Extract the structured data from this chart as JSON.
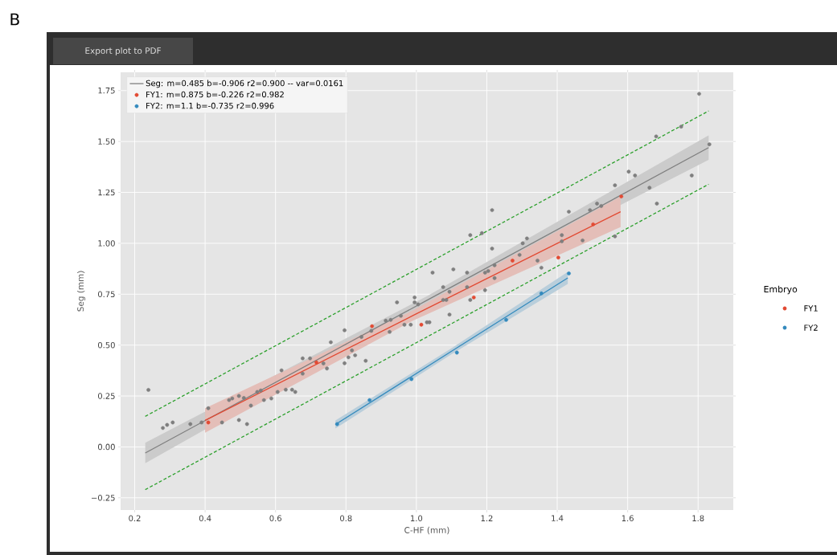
{
  "chart_data": {
    "type": "scatter",
    "xlabel": "C-HF (mm)",
    "ylabel": "Seg (mm)",
    "legend_title": "Embryo",
    "xlim": [
      0.16,
      1.9
    ],
    "ylim": [
      -0.31,
      1.84
    ],
    "xticks": [
      0.2,
      0.4,
      0.6,
      0.8,
      {
        "value": 1.0,
        "label": "1.0"
      },
      1.2,
      1.4,
      1.6,
      1.8
    ],
    "yticks": [
      {
        "value": -0.25,
        "label": "−0.25"
      },
      {
        "value": 0,
        "label": "0.00"
      },
      {
        "value": 0.25,
        "label": "0.25"
      },
      {
        "value": 0.5,
        "label": "0.50"
      },
      {
        "value": 0.75,
        "label": "0.75"
      },
      {
        "value": 1.0,
        "label": "1.00"
      },
      {
        "value": 1.25,
        "label": "1.25"
      },
      {
        "value": 1.5,
        "label": "1.50"
      },
      {
        "value": 1.75,
        "label": "1.75"
      }
    ],
    "grid": true,
    "legend": "top left",
    "marker": "circle",
    "annotations": [
      "B",
      "Export plot to PDF",
      "FY1",
      "FY2"
    ],
    "series": [
      {
        "color": "#7f7f7f",
        "x": [
          0.239,
          0.28,
          0.292,
          0.308,
          0.358,
          0.39,
          0.409,
          0.448,
          0.468,
          0.477,
          0.496,
          0.496,
          0.51,
          0.519,
          0.53,
          0.548,
          0.558,
          0.567,
          0.588,
          0.606,
          0.617,
          0.629,
          0.647,
          0.656,
          0.677,
          0.677,
          0.698,
          0.736,
          0.746,
          0.757,
          0.796,
          0.796,
          0.807,
          0.817,
          0.826,
          0.844,
          0.856,
          0.872,
          0.913,
          0.924,
          0.927,
          0.945,
          0.956,
          0.966,
          0.984,
          0.995,
          0.995,
          1.005,
          1.03,
          1.037,
          1.046,
          1.076,
          1.076,
          1.085,
          1.094,
          1.094,
          1.105,
          1.144,
          1.144,
          1.153,
          1.153,
          1.186,
          1.195,
          1.204,
          1.195,
          1.215,
          1.215,
          1.222,
          1.222,
          1.293,
          1.302,
          1.314,
          1.344,
          1.355,
          1.413,
          1.413,
          1.433,
          1.472,
          1.493,
          1.513,
          1.525,
          1.564,
          1.564,
          1.603,
          1.621,
          1.662,
          1.681,
          1.683,
          1.752,
          1.782,
          1.803,
          1.832
        ],
        "values": [
          0.28,
          0.093,
          0.108,
          0.12,
          0.112,
          0.12,
          0.19,
          0.12,
          0.23,
          0.238,
          0.25,
          0.132,
          0.24,
          0.112,
          0.203,
          0.27,
          0.277,
          0.23,
          0.238,
          0.27,
          0.376,
          0.281,
          0.281,
          0.27,
          0.435,
          0.36,
          0.435,
          0.41,
          0.385,
          0.514,
          0.573,
          0.411,
          0.44,
          0.474,
          0.45,
          0.54,
          0.423,
          0.57,
          0.62,
          0.565,
          0.624,
          0.71,
          0.644,
          0.6,
          0.6,
          0.734,
          0.71,
          0.7,
          0.612,
          0.612,
          0.856,
          0.785,
          0.722,
          0.722,
          0.762,
          0.65,
          0.872,
          0.856,
          0.785,
          0.722,
          1.04,
          1.05,
          0.856,
          0.864,
          0.77,
          1.163,
          0.974,
          0.892,
          0.829,
          0.943,
          1.0,
          1.024,
          0.915,
          0.88,
          1.04,
          1.01,
          1.155,
          1.014,
          1.163,
          1.195,
          1.183,
          1.285,
          1.034,
          1.352,
          1.333,
          1.273,
          1.525,
          1.195,
          1.573,
          1.333,
          1.734,
          1.486
        ]
      },
      {
        "type": "line",
        "name": "Seg: m=0.485 b=-0.906  r2=0.900 -- var=0.0161",
        "color": "#7f7f7f",
        "marker": "none",
        "x": [
          0.23,
          1.03,
          1.83
        ],
        "values": [
          -0.03,
          0.72,
          1.47
        ],
        "lower": [
          -0.08,
          0.7,
          1.41
        ],
        "upper": [
          0.02,
          0.74,
          1.53
        ]
      },
      {
        "name": "FY1:   m=0.875 b=-0.226 r2=0.982",
        "color": "#e24a33",
        "x": [
          0.409,
          0.716,
          0.874,
          1.014,
          1.163,
          1.273,
          1.403,
          1.502,
          1.582
        ],
        "values": [
          0.12,
          0.415,
          0.593,
          0.6,
          0.734,
          0.915,
          0.93,
          1.093,
          1.23
        ]
      },
      {
        "type": "line",
        "color": "#e24a33",
        "marker": "none",
        "x": [
          0.4,
          0.99,
          1.58
        ],
        "values": [
          0.13,
          0.645,
          1.155
        ],
        "lower": [
          0.07,
          0.62,
          1.08
        ],
        "upper": [
          0.19,
          0.67,
          1.23
        ]
      },
      {
        "name": "FY2:   m=1.1 b=-0.735 r2=0.996",
        "color": "#348abd",
        "x": [
          0.775,
          0.867,
          0.986,
          1.115,
          1.255,
          1.355,
          1.433
        ],
        "values": [
          0.112,
          0.23,
          0.333,
          0.463,
          0.624,
          0.754,
          0.852
        ]
      },
      {
        "type": "line",
        "color": "#348abd",
        "marker": "none",
        "x": [
          0.77,
          1.1,
          1.43
        ],
        "values": [
          0.11,
          0.47,
          0.83
        ],
        "lower": [
          0.09,
          0.455,
          0.8
        ],
        "upper": [
          0.13,
          0.485,
          0.86
        ]
      },
      {
        "type": "line",
        "color": "#2ca02c",
        "marker": "none",
        "line_style": "dashed",
        "x": [
          0.23,
          1.83
        ],
        "values": [
          0.15,
          1.65
        ]
      },
      {
        "type": "line",
        "color": "#2ca02c",
        "marker": "none",
        "line_style": "dashed",
        "x": [
          0.23,
          1.83
        ],
        "values": [
          -0.21,
          1.29
        ]
      }
    ]
  }
}
